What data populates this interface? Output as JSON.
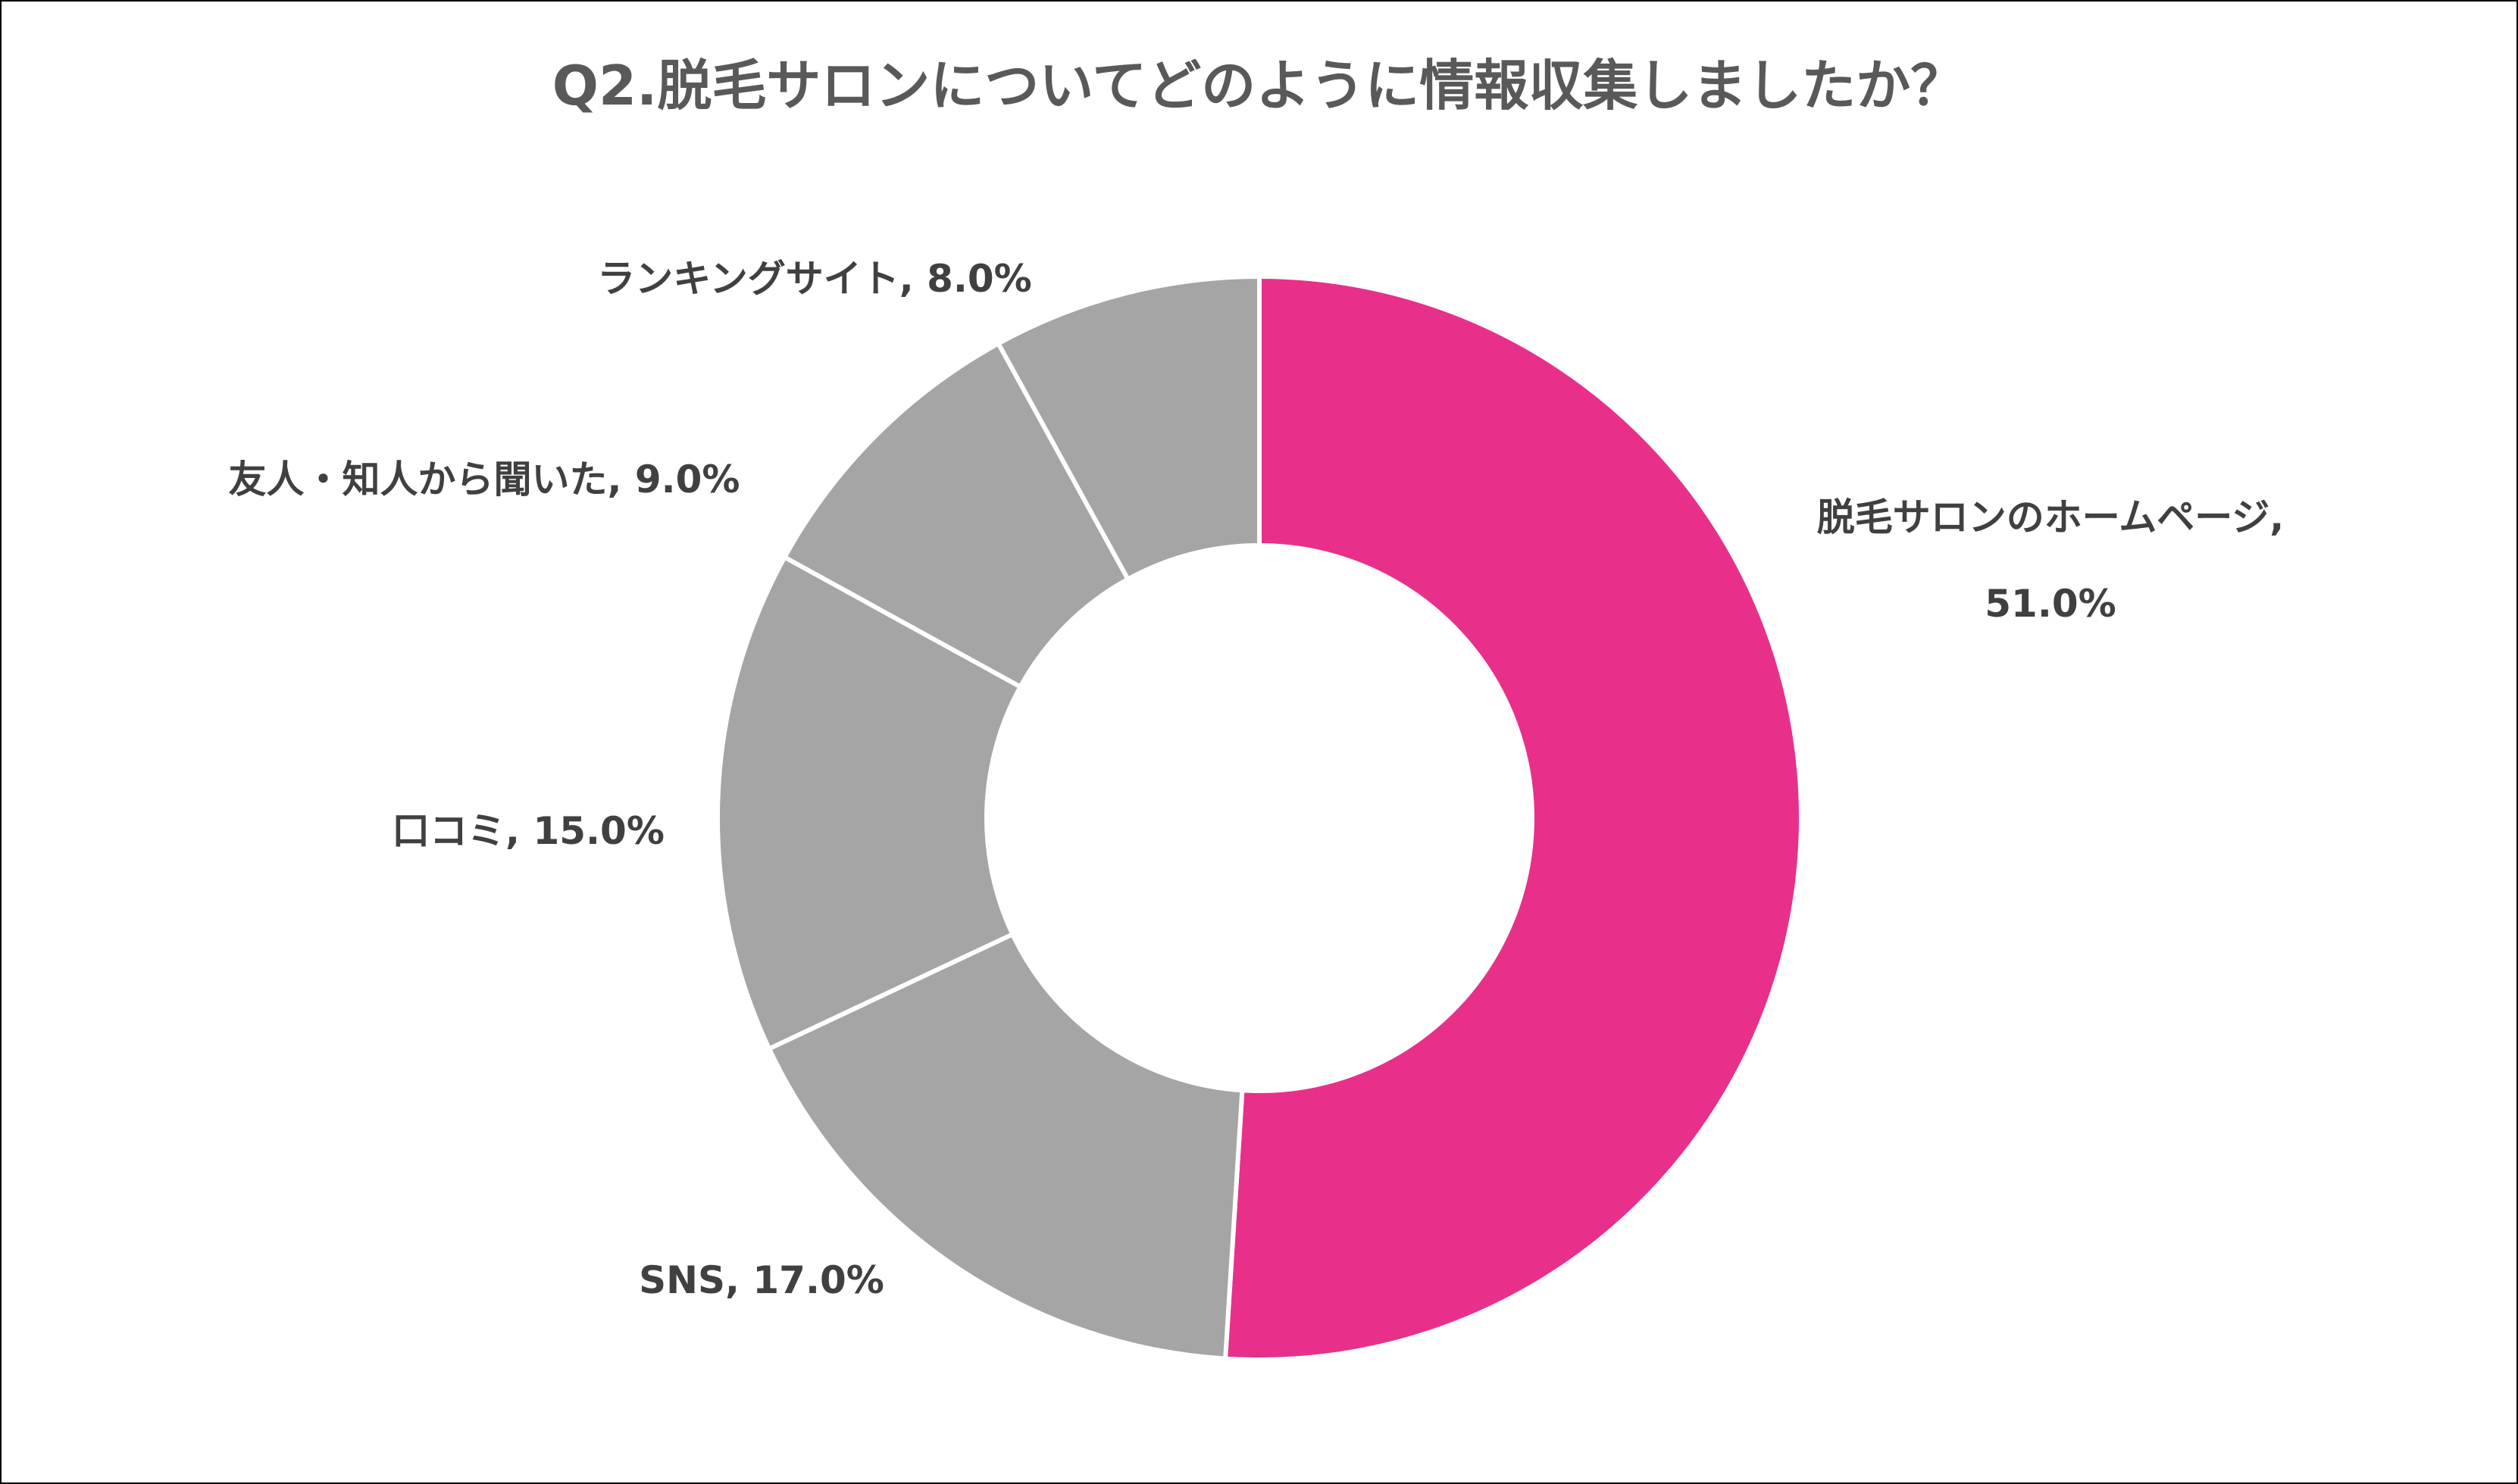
{
  "chart_data": {
    "type": "pie",
    "variant": "donut",
    "title": "Q2.脱毛サロンについてどのように情報収集しましたか？",
    "start_angle_deg": 0,
    "direction": "clockwise",
    "slices": [
      {
        "label": "脱毛サロンのホームページ",
        "value": 51.0,
        "value_text": "51.0%",
        "color": "#E8308A"
      },
      {
        "label": "SNS",
        "value": 17.0,
        "value_text": "17.0%",
        "color": "#A5A5A5"
      },
      {
        "label": "口コミ",
        "value": 15.0,
        "value_text": "15.0%",
        "color": "#A5A5A5"
      },
      {
        "label": "友人・知人から聞いた",
        "value": 9.0,
        "value_text": "9.0%",
        "color": "#A5A5A5"
      },
      {
        "label": "ランキングサイト",
        "value": 8.0,
        "value_text": "8.0%",
        "color": "#A5A5A5"
      }
    ],
    "legend": "none",
    "colors": {
      "highlight": "#E8308A",
      "other": "#A5A5A5",
      "separator": "#FFFFFF",
      "title": "#595959",
      "label": "#404040"
    }
  }
}
